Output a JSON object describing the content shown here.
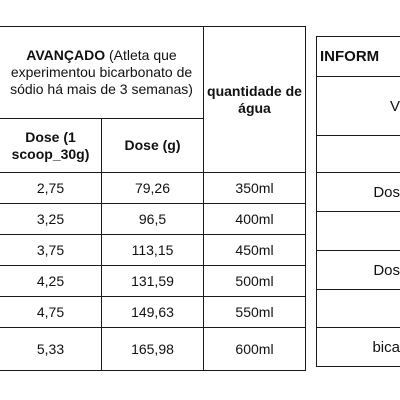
{
  "left_table": {
    "header": {
      "advanced_bold": "AVANÇADO",
      "advanced_rest": " (Atleta que experimentou bicarbonato de sódio há mais de 3 semanas)",
      "water_header": "quantidade de água",
      "col_dose_scoop": "Dose (1 scoop_30g)",
      "col_dose_g": "Dose (g)"
    },
    "rows": [
      {
        "scoop": "2,75",
        "grams": "79,26",
        "water": "350ml"
      },
      {
        "scoop": "3,25",
        "grams": "96,5",
        "water": "400ml"
      },
      {
        "scoop": "3,75",
        "grams": "113,15",
        "water": "450ml"
      },
      {
        "scoop": "4,25",
        "grams": "131,59",
        "water": "500ml"
      },
      {
        "scoop": "4,75",
        "grams": "149,63",
        "water": "550ml"
      },
      {
        "scoop": "5,33",
        "grams": "165,98",
        "water": "600ml"
      }
    ]
  },
  "right_table": {
    "header": "INFORM",
    "rows": [
      "V",
      "",
      "Dos",
      "",
      "Dos",
      "",
      "bica"
    ]
  }
}
